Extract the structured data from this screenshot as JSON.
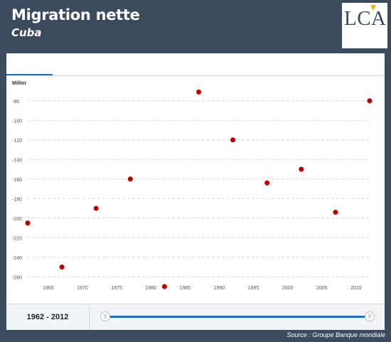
{
  "header": {
    "title": "Migration nette",
    "subtitle": "Cuba",
    "logo": "LCA"
  },
  "colors": {
    "background": "#3c4a5e",
    "marker": "#c00000",
    "accent": "#1f6fc6"
  },
  "chart_data": {
    "type": "scatter",
    "ylabel": "Millier",
    "x": [
      1962,
      1967,
      1972,
      1977,
      1982,
      1987,
      1992,
      1997,
      2002,
      2007,
      2012
    ],
    "y": [
      -205,
      -250,
      -190,
      -160,
      -270,
      -71,
      -120,
      -164,
      -150,
      -194,
      -80
    ],
    "xlim": [
      1962,
      2012
    ],
    "ylim": [
      -270,
      -70
    ],
    "xticks": [
      1965,
      1970,
      1975,
      1980,
      1985,
      1990,
      1995,
      2000,
      2005,
      2010
    ],
    "yticks": [
      -80,
      -100,
      -120,
      -140,
      -160,
      -180,
      -200,
      -220,
      -240,
      -260
    ],
    "grid": "horizontal dashed"
  },
  "footer": {
    "range_start": "1962",
    "range_sep": " - ",
    "range_end": "2012",
    "handle_glyph": "|||"
  },
  "source": "Source : Groupe Banque mondiale"
}
